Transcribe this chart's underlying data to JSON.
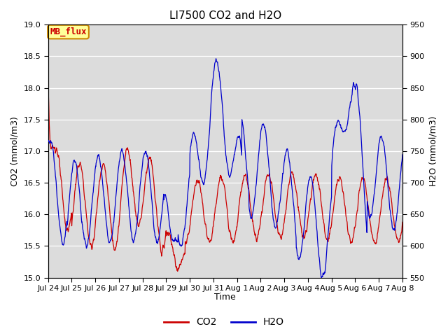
{
  "title": "LI7500 CO2 and H2O",
  "xlabel": "Time",
  "ylabel_left": "CO2 (mmol/m3)",
  "ylabel_right": "H2O (mmol/m3)",
  "co2_ylim": [
    15.0,
    19.0
  ],
  "h2o_ylim": [
    550,
    950
  ],
  "co2_color": "#cc0000",
  "h2o_color": "#0000cc",
  "plot_bg_color": "#dcdcdc",
  "fig_bg_color": "#ffffff",
  "legend_label_co2": "CO2",
  "legend_label_h2o": "H2O",
  "annotation_text": "MB_flux",
  "annotation_bg": "#ffff99",
  "annotation_border": "#cc8800",
  "x_tick_labels": [
    "Jul 24",
    "Jul 25",
    "Jul 26",
    "Jul 27",
    "Jul 28",
    "Jul 29",
    "Jul 30",
    "Jul 31",
    "Aug 1",
    "Aug 2",
    "Aug 3",
    "Aug 4",
    "Aug 5",
    "Aug 6",
    "Aug 7",
    "Aug 8"
  ],
  "n_points": 1500,
  "duration_days": 15,
  "title_fontsize": 11,
  "axis_label_fontsize": 9,
  "tick_fontsize": 8,
  "legend_fontsize": 10
}
